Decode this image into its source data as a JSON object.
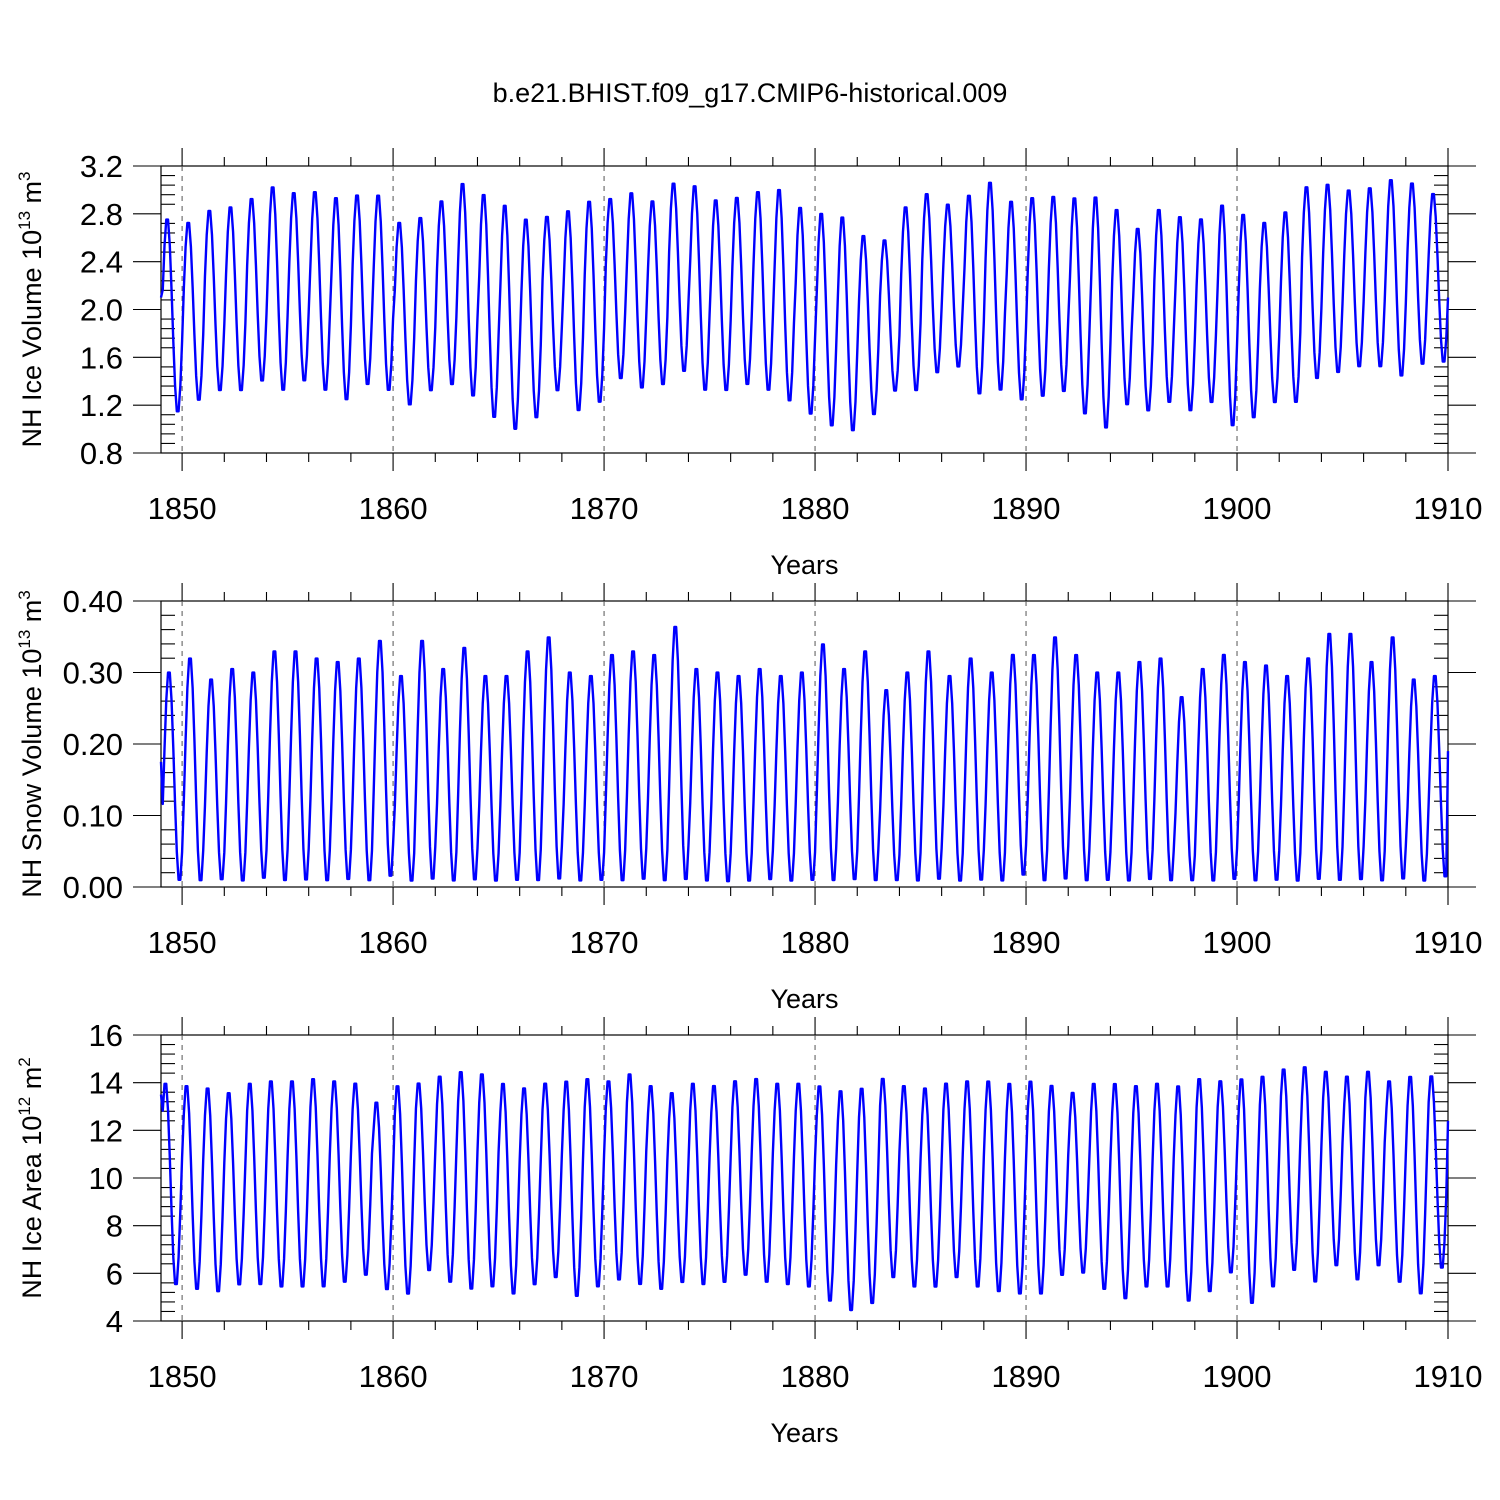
{
  "title": "b.e21.BHIST.f09_g17.CMIP6-historical.009",
  "series_color": "#0000ff",
  "chart_data": [
    {
      "type": "line",
      "name": "ice-volume",
      "title": "b.e21.BHIST.f09_g17.CMIP6-historical.009",
      "xlabel": "Years",
      "ylabel_prefix": "NH Ice Volume 10",
      "ylabel_exponent": "13",
      "ylabel_unit": " m",
      "ylabel_unit_exponent": "3",
      "xlim": [
        1849,
        1910
      ],
      "ylim": [
        0.8,
        3.2
      ],
      "xticks": [
        1850,
        1860,
        1870,
        1880,
        1890,
        1900,
        1910
      ],
      "xtick_labels": [
        "1850",
        "1860",
        "1870",
        "1880",
        "1890",
        "1900",
        "1910"
      ],
      "yticks": [
        0.8,
        1.2,
        1.6,
        2.0,
        2.4,
        2.8,
        3.2
      ],
      "ytick_labels": [
        "0.8",
        "1.2",
        "1.6",
        "2.0",
        "2.4",
        "2.8",
        "3.2"
      ],
      "grid_years": [
        1850,
        1860,
        1870,
        1880,
        1890,
        1900
      ],
      "seasonal_peak_month": 3.5,
      "start_value": 2.1,
      "end_value": 2.1,
      "annual_max": [
        2.78,
        2.75,
        2.85,
        2.88,
        2.95,
        3.05,
        3.0,
        3.01,
        2.96,
        2.98,
        2.98,
        2.75,
        2.79,
        2.93,
        3.08,
        2.99,
        2.9,
        2.78,
        2.8,
        2.85,
        2.93,
        2.95,
        3.0,
        2.93,
        3.08,
        3.06,
        2.94,
        2.96,
        3.01,
        3.03,
        2.88,
        2.83,
        2.8,
        2.64,
        2.6,
        2.88,
        2.99,
        2.9,
        2.98,
        3.09,
        2.93,
        2.96,
        2.97,
        2.96,
        2.97,
        2.86,
        2.7,
        2.86,
        2.8,
        2.78,
        2.9,
        2.82,
        2.75,
        2.84,
        3.05,
        3.07,
        3.02,
        3.04,
        3.11,
        3.08,
        2.99
      ],
      "annual_min": [
        1.12,
        1.22,
        1.3,
        1.3,
        1.38,
        1.3,
        1.38,
        1.3,
        1.22,
        1.35,
        1.3,
        1.18,
        1.3,
        1.35,
        1.25,
        1.07,
        0.97,
        1.07,
        1.3,
        1.13,
        1.2,
        1.4,
        1.32,
        1.35,
        1.46,
        1.3,
        1.3,
        1.35,
        1.3,
        1.21,
        1.1,
        1.0,
        0.96,
        1.1,
        1.3,
        1.3,
        1.45,
        1.5,
        1.27,
        1.3,
        1.22,
        1.25,
        1.29,
        1.1,
        0.98,
        1.18,
        1.13,
        1.2,
        1.13,
        1.2,
        1.0,
        1.07,
        1.2,
        1.2,
        1.4,
        1.45,
        1.5,
        1.5,
        1.42,
        1.52,
        1.54
      ]
    },
    {
      "type": "line",
      "name": "snow-volume",
      "title": "",
      "xlabel": "Years",
      "ylabel_prefix": "NH Snow Volume 10",
      "ylabel_exponent": "13",
      "ylabel_unit": " m",
      "ylabel_unit_exponent": "3",
      "xlim": [
        1849,
        1910
      ],
      "ylim": [
        0.0,
        0.4
      ],
      "xticks": [
        1850,
        1860,
        1870,
        1880,
        1890,
        1900,
        1910
      ],
      "xtick_labels": [
        "1850",
        "1860",
        "1870",
        "1880",
        "1890",
        "1900",
        "1910"
      ],
      "yticks": [
        0.0,
        0.1,
        0.2,
        0.3,
        0.4
      ],
      "ytick_labels": [
        "0.00",
        "0.10",
        "0.20",
        "0.30",
        "0.40"
      ],
      "grid_years": [
        1850,
        1860,
        1870,
        1880,
        1890,
        1900
      ],
      "seasonal_peak_month": 4.5,
      "start_value": 0.175,
      "end_value": 0.19,
      "annual_max": [
        0.305,
        0.325,
        0.295,
        0.31,
        0.305,
        0.335,
        0.335,
        0.325,
        0.32,
        0.325,
        0.35,
        0.3,
        0.35,
        0.31,
        0.34,
        0.3,
        0.3,
        0.335,
        0.355,
        0.305,
        0.3,
        0.33,
        0.335,
        0.33,
        0.37,
        0.31,
        0.305,
        0.3,
        0.31,
        0.3,
        0.305,
        0.345,
        0.31,
        0.335,
        0.28,
        0.305,
        0.335,
        0.3,
        0.325,
        0.305,
        0.33,
        0.33,
        0.355,
        0.33,
        0.305,
        0.305,
        0.32,
        0.325,
        0.27,
        0.31,
        0.33,
        0.32,
        0.315,
        0.3,
        0.325,
        0.36,
        0.36,
        0.32,
        0.355,
        0.295,
        0.3
      ],
      "annual_min": [
        0.005,
        0.004,
        0.006,
        0.004,
        0.008,
        0.004,
        0.005,
        0.004,
        0.006,
        0.004,
        0.01,
        0.004,
        0.006,
        0.004,
        0.005,
        0.004,
        0.005,
        0.004,
        0.006,
        0.004,
        0.005,
        0.004,
        0.006,
        0.004,
        0.005,
        0.004,
        0.003,
        0.004,
        0.006,
        0.004,
        0.005,
        0.004,
        0.006,
        0.004,
        0.005,
        0.004,
        0.006,
        0.004,
        0.005,
        0.004,
        0.012,
        0.004,
        0.006,
        0.004,
        0.005,
        0.004,
        0.006,
        0.004,
        0.005,
        0.004,
        0.006,
        0.004,
        0.005,
        0.004,
        0.006,
        0.004,
        0.005,
        0.004,
        0.006,
        0.004,
        0.01
      ]
    },
    {
      "type": "line",
      "name": "ice-area",
      "title": "",
      "xlabel": "Years",
      "ylabel_prefix": "NH Ice Area 10",
      "ylabel_exponent": "12",
      "ylabel_unit": " m",
      "ylabel_unit_exponent": "2",
      "xlim": [
        1849,
        1910
      ],
      "ylim": [
        4,
        16
      ],
      "xticks": [
        1850,
        1860,
        1870,
        1880,
        1890,
        1900,
        1910
      ],
      "xtick_labels": [
        "1850",
        "1860",
        "1870",
        "1880",
        "1890",
        "1900",
        "1910"
      ],
      "yticks": [
        4,
        6,
        8,
        10,
        12,
        14,
        16
      ],
      "ytick_labels": [
        "4",
        "6",
        "8",
        "10",
        "12",
        "14",
        "16"
      ],
      "grid_years": [
        1850,
        1860,
        1870,
        1880,
        1890,
        1900
      ],
      "seasonal_peak_month": 2.5,
      "start_value": 13.5,
      "end_value": 12.4,
      "annual_max": [
        14.1,
        14.0,
        13.9,
        13.7,
        14.1,
        14.2,
        14.2,
        14.3,
        14.2,
        14.1,
        13.3,
        14.0,
        14.1,
        14.4,
        14.6,
        14.5,
        14.1,
        13.9,
        14.1,
        14.2,
        14.3,
        14.2,
        14.5,
        14.0,
        13.7,
        14.1,
        14.0,
        14.2,
        14.3,
        14.1,
        14.1,
        14.0,
        13.8,
        13.9,
        14.3,
        14.0,
        13.9,
        14.1,
        14.2,
        14.2,
        14.1,
        14.2,
        14.0,
        13.7,
        14.1,
        14.1,
        14.0,
        14.1,
        14.0,
        14.3,
        14.2,
        14.3,
        14.4,
        14.7,
        14.8,
        14.6,
        14.4,
        14.6,
        14.2,
        14.4,
        14.4
      ],
      "annual_min": [
        5.4,
        5.2,
        5.1,
        5.4,
        5.4,
        5.3,
        5.3,
        5.3,
        5.5,
        5.8,
        5.2,
        5.0,
        6.0,
        5.5,
        5.2,
        5.3,
        5.0,
        5.4,
        5.7,
        4.9,
        5.3,
        5.6,
        5.4,
        5.2,
        5.5,
        5.4,
        5.5,
        5.8,
        5.5,
        5.4,
        5.3,
        4.7,
        4.3,
        4.6,
        5.7,
        5.3,
        5.3,
        5.7,
        5.3,
        5.1,
        5.0,
        5.0,
        5.8,
        5.9,
        5.2,
        4.8,
        5.3,
        5.3,
        4.7,
        5.1,
        5.9,
        4.6,
        5.3,
        6.0,
        5.5,
        6.2,
        5.6,
        6.2,
        5.5,
        5.0,
        6.1
      ]
    }
  ]
}
